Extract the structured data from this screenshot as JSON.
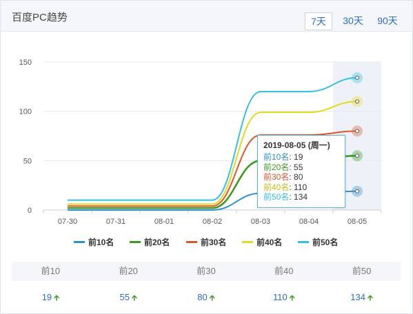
{
  "header": {
    "title": "百度PC趋势",
    "ranges": [
      {
        "label": "7天",
        "active": true
      },
      {
        "label": "30天",
        "active": false
      },
      {
        "label": "90天",
        "active": false
      }
    ]
  },
  "chart_data": {
    "type": "line",
    "x": [
      "07-30",
      "07-31",
      "08-01",
      "08-02",
      "08-03",
      "08-04",
      "08-05"
    ],
    "ylim": [
      0,
      150
    ],
    "yticks": [
      "0",
      "50",
      "100",
      "150"
    ],
    "series": [
      {
        "name": "前10名",
        "color": "#2f8fcf",
        "values": [
          0,
          0,
          0,
          0,
          17,
          17,
          19
        ]
      },
      {
        "name": "前20名",
        "color": "#3a9a1f",
        "values": [
          2,
          2,
          2,
          2,
          50,
          50,
          55
        ]
      },
      {
        "name": "前30名",
        "color": "#e0522a",
        "values": [
          4,
          4,
          4,
          4,
          76,
          76,
          80
        ]
      },
      {
        "name": "前40名",
        "color": "#e6d81a",
        "values": [
          6,
          6,
          6,
          6,
          99,
          99,
          110
        ]
      },
      {
        "name": "前50名",
        "color": "#31c2e0",
        "values": [
          10,
          10,
          10,
          10,
          120,
          120,
          134
        ]
      }
    ],
    "highlight_index": 6
  },
  "tooltip": {
    "title": "2019-08-05 (周一)",
    "rows": [
      {
        "label": "前10名",
        "value": "19"
      },
      {
        "label": "前20名",
        "value": "55"
      },
      {
        "label": "前30名",
        "value": "80"
      },
      {
        "label": "前40名",
        "value": "110"
      },
      {
        "label": "前50名",
        "value": "134"
      }
    ]
  },
  "stats": {
    "headers": [
      "前10",
      "前20",
      "前30",
      "前40",
      "前50"
    ],
    "values": [
      "19",
      "55",
      "80",
      "110",
      "134"
    ],
    "trend_icon": "up-arrow-icon"
  }
}
